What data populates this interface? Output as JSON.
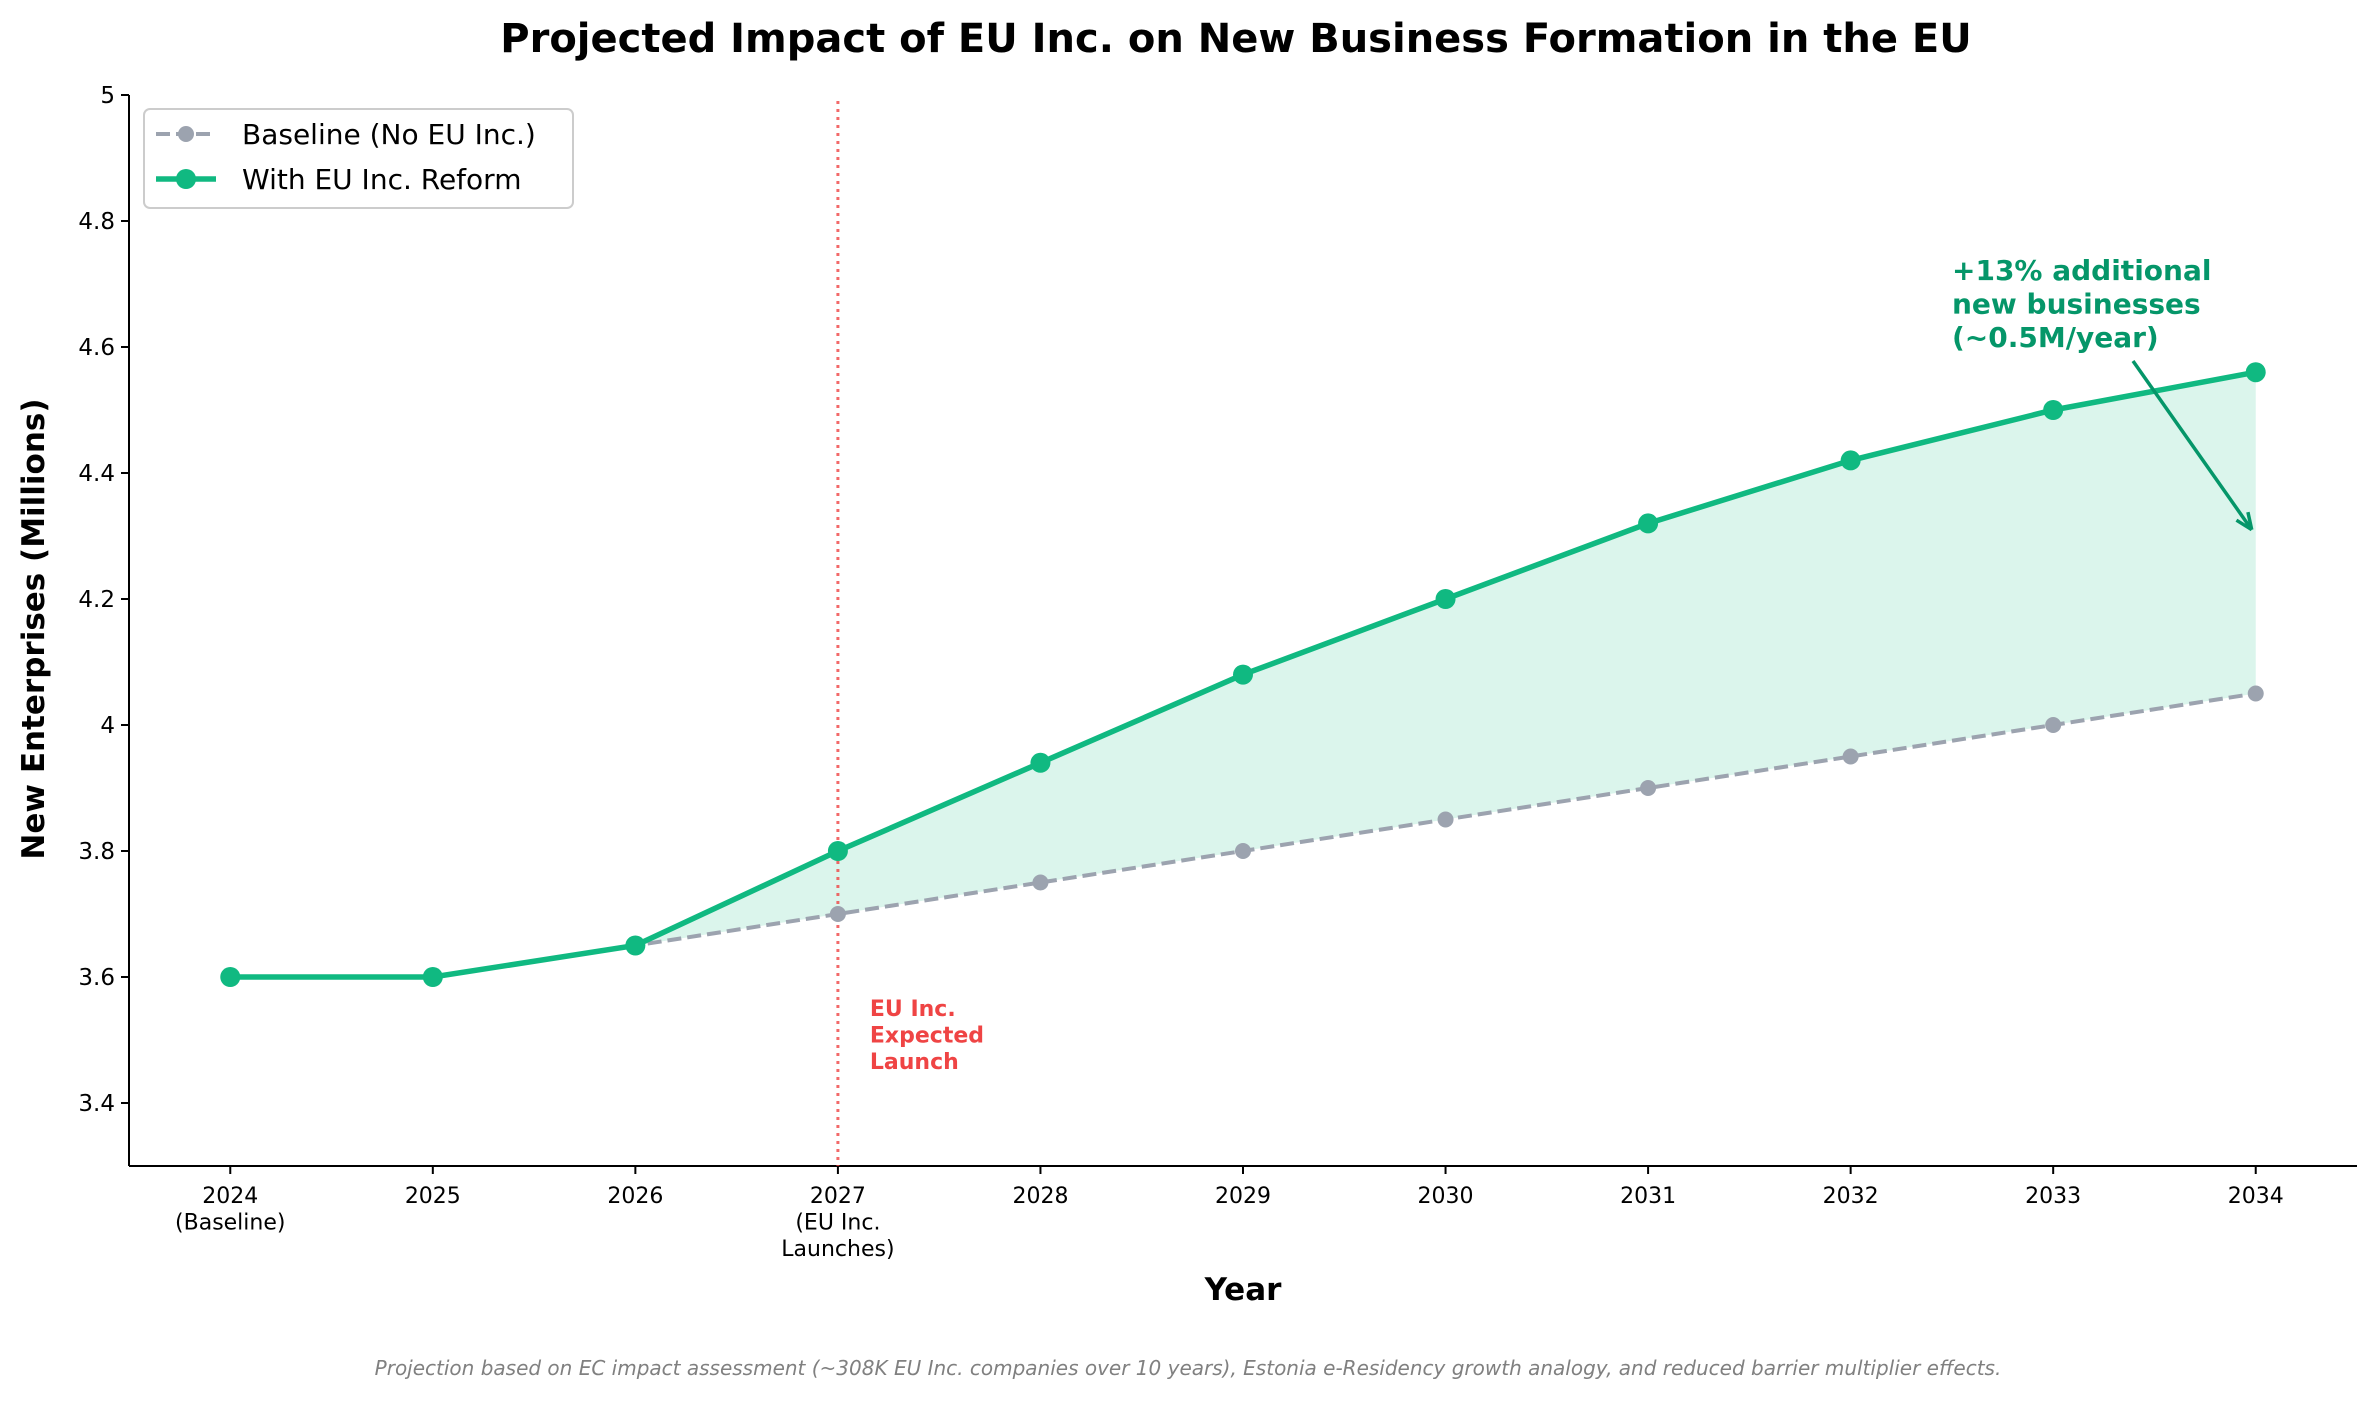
{
  "chart_data": {
    "type": "line",
    "title": "Projected Impact of EU Inc. on New Business Formation in the EU",
    "x_label": "Year",
    "y_label": "New Enterprises (Millions)",
    "x": [
      2024,
      2025,
      2026,
      2027,
      2028,
      2029,
      2030,
      2031,
      2032,
      2033,
      2034
    ],
    "xlim": [
      2023.5,
      2034.5
    ],
    "xticks": [
      {
        "value": 2024,
        "label": "2024\n(Baseline)"
      },
      2025,
      2026,
      {
        "value": 2027,
        "label": "2027\n(EU Inc.\nLaunches)"
      },
      2028,
      2029,
      2030,
      2031,
      2032,
      2033,
      2034
    ],
    "ylim": [
      3.3,
      5.0
    ],
    "yticks": [
      3.4,
      3.6,
      3.8,
      4.0,
      4.2,
      4.4,
      4.6,
      4.8,
      5.0
    ],
    "series": [
      {
        "name": "Baseline (No EU Inc.)",
        "color": "#9ca3af",
        "dashed": true,
        "values": [
          3.6,
          3.6,
          3.65,
          3.7,
          3.75,
          3.8,
          3.85,
          3.9,
          3.95,
          4.0,
          4.05
        ]
      },
      {
        "name": "With EU Inc. Reform",
        "color": "#10b981",
        "dashed": false,
        "values": [
          3.6,
          3.6,
          3.65,
          3.8,
          3.94,
          4.08,
          4.2,
          4.32,
          4.42,
          4.5,
          4.56
        ]
      }
    ],
    "fill_between_from": 2026,
    "legend": "upper left",
    "vline": {
      "x": 2027,
      "color": "#ef4444",
      "label": "EU Inc.\nExpected\nLaunch"
    },
    "annotation": {
      "text": "+13% additional\nnew businesses\n(~0.5M/year)",
      "color": "#059669",
      "xy": [
        2034,
        4.31
      ]
    },
    "footnote": "Projection based on EC impact assessment (~308K EU Inc. companies over 10 years), Estonia e-Residency growth analogy, and reduced barrier multiplier effects."
  }
}
